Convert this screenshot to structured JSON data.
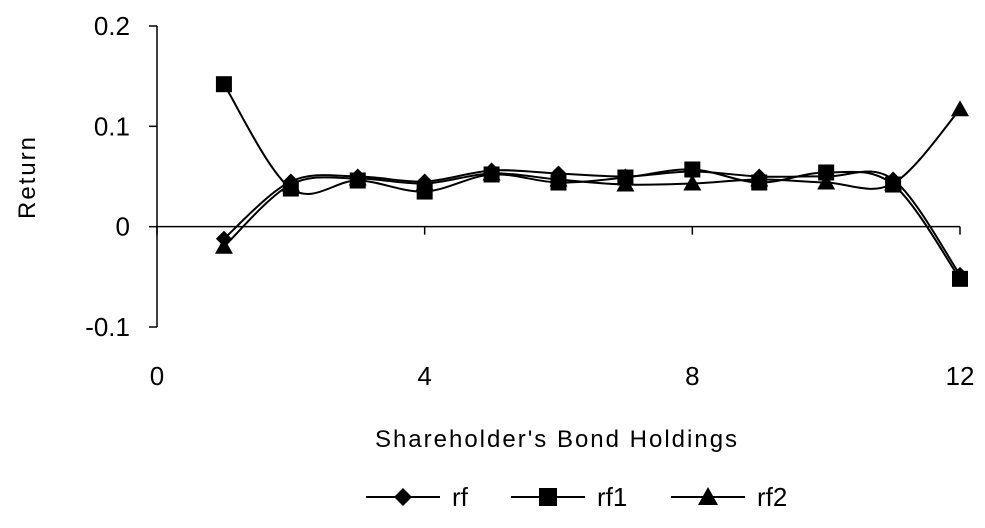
{
  "chart_data": {
    "type": "line",
    "title": "",
    "xlabel": "Shareholder's Bond Holdings",
    "ylabel": "Return",
    "xlim": [
      0,
      12
    ],
    "ylim": [
      -0.1,
      0.2
    ],
    "x_ticks": [
      {
        "value": 0,
        "label": "0"
      },
      {
        "value": 4,
        "label": "4"
      },
      {
        "value": 8,
        "label": "8"
      },
      {
        "value": 12,
        "label": "12"
      }
    ],
    "y_ticks": [
      {
        "value": -0.1,
        "label": "-0.1"
      },
      {
        "value": 0,
        "label": "0"
      },
      {
        "value": 0.1,
        "label": "0.1"
      },
      {
        "value": 0.2,
        "label": "0.2"
      }
    ],
    "grid": false,
    "legend_position": "bottom",
    "line_color": "#000000",
    "x": [
      1,
      2,
      3,
      4,
      5,
      6,
      7,
      8,
      9,
      10,
      11,
      12
    ],
    "series": [
      {
        "name": "rf",
        "marker": "diamond",
        "values": [
          -0.012,
          0.045,
          0.05,
          0.045,
          0.056,
          0.053,
          0.05,
          0.055,
          0.05,
          0.05,
          0.047,
          -0.048
        ]
      },
      {
        "name": "rf1",
        "marker": "square",
        "values": [
          0.142,
          0.038,
          0.046,
          0.035,
          0.052,
          0.044,
          0.049,
          0.057,
          0.044,
          0.054,
          0.042,
          -0.052
        ]
      },
      {
        "name": "rf2",
        "marker": "triangle",
        "values": [
          -0.02,
          0.042,
          0.048,
          0.043,
          0.053,
          0.047,
          0.042,
          0.043,
          0.047,
          0.044,
          0.043,
          0.117
        ]
      }
    ]
  }
}
